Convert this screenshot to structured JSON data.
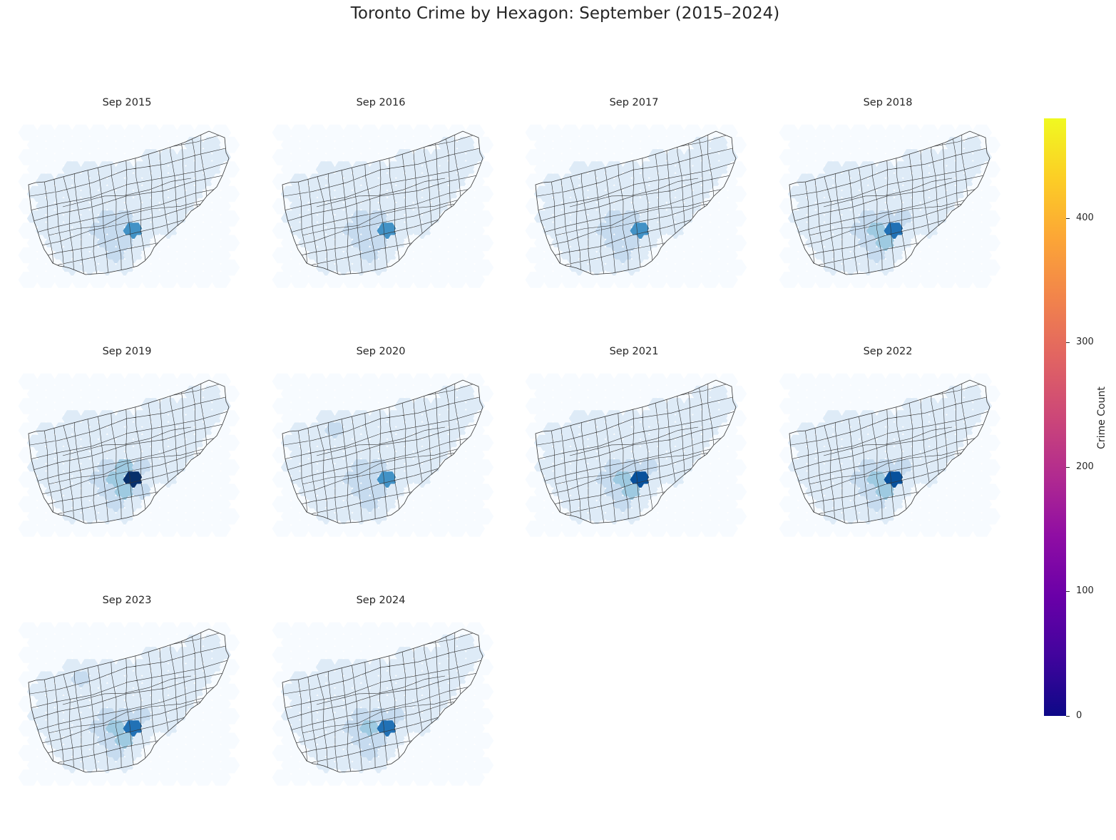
{
  "title": "Toronto Crime by Hexagon: September (2015–2024)",
  "colors": {
    "ramp": [
      "#f7fbff",
      "#deebf7",
      "#c6dbef",
      "#9ecae1",
      "#6baed6",
      "#4292c6",
      "#2171b5",
      "#08519c",
      "#08306b"
    ],
    "boundary": "#333333",
    "colorbar": "plasma"
  },
  "panels": [
    {
      "title": "Sep 2015",
      "hotspot": 0.55
    },
    {
      "title": "Sep 2016",
      "hotspot": 0.5
    },
    {
      "title": "Sep 2017",
      "hotspot": 0.55
    },
    {
      "title": "Sep 2018",
      "hotspot": 0.7
    },
    {
      "title": "Sep 2019",
      "hotspot": 0.95
    },
    {
      "title": "Sep 2020",
      "hotspot": 0.55
    },
    {
      "title": "Sep 2021",
      "hotspot": 0.75
    },
    {
      "title": "Sep 2022",
      "hotspot": 0.75
    },
    {
      "title": "Sep 2023",
      "hotspot": 0.68
    },
    {
      "title": "Sep 2024",
      "hotspot": 0.65
    }
  ],
  "colorbar": {
    "label": "Crime Count",
    "min": 0,
    "max": 480,
    "ticks": [
      "0",
      "100",
      "200",
      "300",
      "400"
    ],
    "tick_values": [
      0,
      100,
      200,
      300,
      400
    ]
  }
}
